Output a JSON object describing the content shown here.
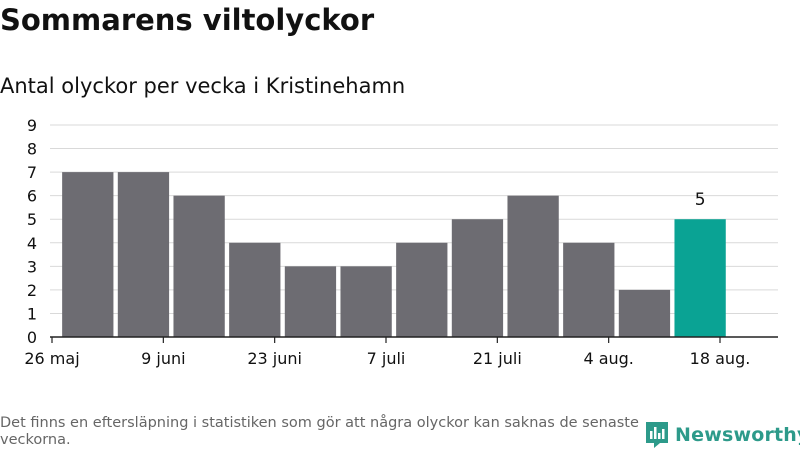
{
  "header": {
    "title": "Sommarens viltolyckor",
    "subtitle": "Antal olyckor per vecka i Kristinehamn"
  },
  "footer": {
    "note": "Det finns en eftersläpning i statistiken som gör att några olyckor kan saknas de senaste veckorna.",
    "brand": "Newsworthy"
  },
  "colors": {
    "bar": "#6d6c72",
    "highlight": "#0aa394",
    "grid": "#d9d9d9",
    "axis": "#222222",
    "brand": "#2d9a8a"
  },
  "chart_data": {
    "type": "bar",
    "title": "Sommarens viltolyckor",
    "subtitle": "Antal olyckor per vecka i Kristinehamn",
    "weeks": [
      "2024-05-27",
      "2024-06-03",
      "2024-06-10",
      "2024-06-17",
      "2024-06-24",
      "2024-07-01",
      "2024-07-08",
      "2024-07-15",
      "2024-07-22",
      "2024-07-29",
      "2024-08-05",
      "2024-08-12"
    ],
    "values": [
      7,
      7,
      6,
      4,
      3,
      3,
      4,
      5,
      6,
      4,
      2,
      5
    ],
    "highlight_index": 11,
    "data_labels": [
      {
        "index": 11,
        "text": "5"
      }
    ],
    "x_tick_labels": [
      "26 maj",
      "9 juni",
      "23 juni",
      "7 juli",
      "21 juli",
      "4 aug.",
      "18 aug."
    ],
    "x_tick_dates": [
      "2024-05-26",
      "2024-06-09",
      "2024-06-23",
      "2024-07-07",
      "2024-07-21",
      "2024-08-04",
      "2024-08-18"
    ],
    "y_ticks": [
      0,
      1,
      2,
      3,
      4,
      5,
      6,
      7,
      8,
      9
    ],
    "ylim": [
      0,
      9
    ],
    "grid": true,
    "xlabel": "",
    "ylabel": ""
  }
}
